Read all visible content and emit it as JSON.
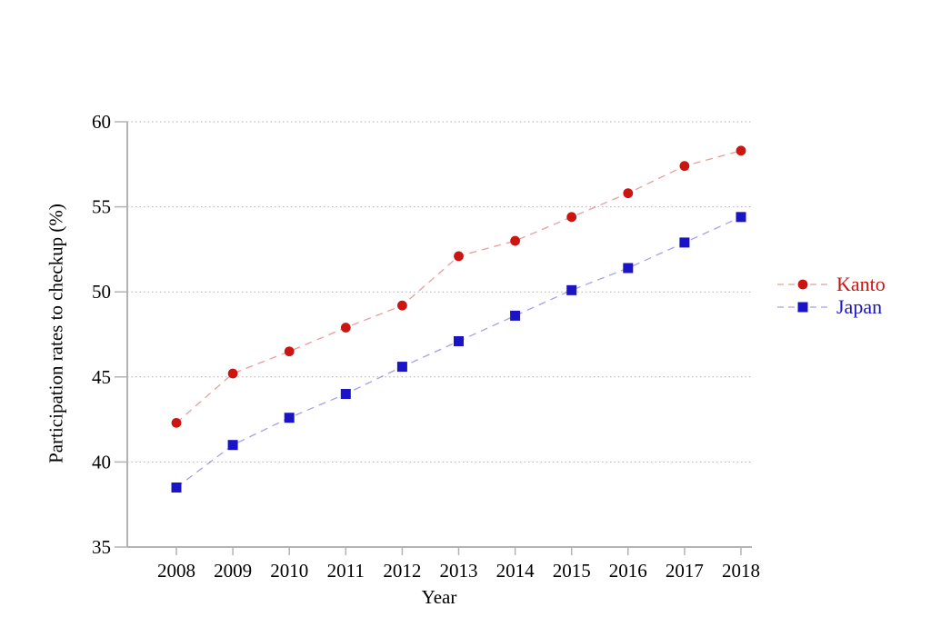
{
  "chart_data": {
    "type": "line",
    "title": "",
    "xlabel": "Year",
    "ylabel": "Participation rates to checkup (%)",
    "x": [
      2008,
      2009,
      2010,
      2011,
      2012,
      2013,
      2014,
      2015,
      2016,
      2017,
      2018
    ],
    "ylim": [
      35,
      60
    ],
    "yticks": [
      35,
      40,
      45,
      50,
      55,
      60
    ],
    "grid": "horizontal-dotted",
    "legend_position": "right-outside",
    "line_style": "dashed",
    "axis_color": "#b3b3b3",
    "grid_color": "#b0b0b0",
    "series": [
      {
        "name": "Kanto",
        "marker": "circle",
        "color": "#cc1511",
        "line_color": "rgba(204, 21, 17, 0.42)",
        "values": [
          42.3,
          45.2,
          46.5,
          47.9,
          49.2,
          52.1,
          53.0,
          54.4,
          55.8,
          57.4,
          58.3
        ]
      },
      {
        "name": "Japan",
        "marker": "square",
        "color": "#1b14c7",
        "line_color": "rgba(27, 20, 199, 0.40)",
        "values": [
          38.5,
          41.0,
          42.6,
          44.0,
          45.6,
          47.1,
          48.6,
          50.1,
          51.4,
          52.9,
          54.4
        ]
      }
    ]
  }
}
